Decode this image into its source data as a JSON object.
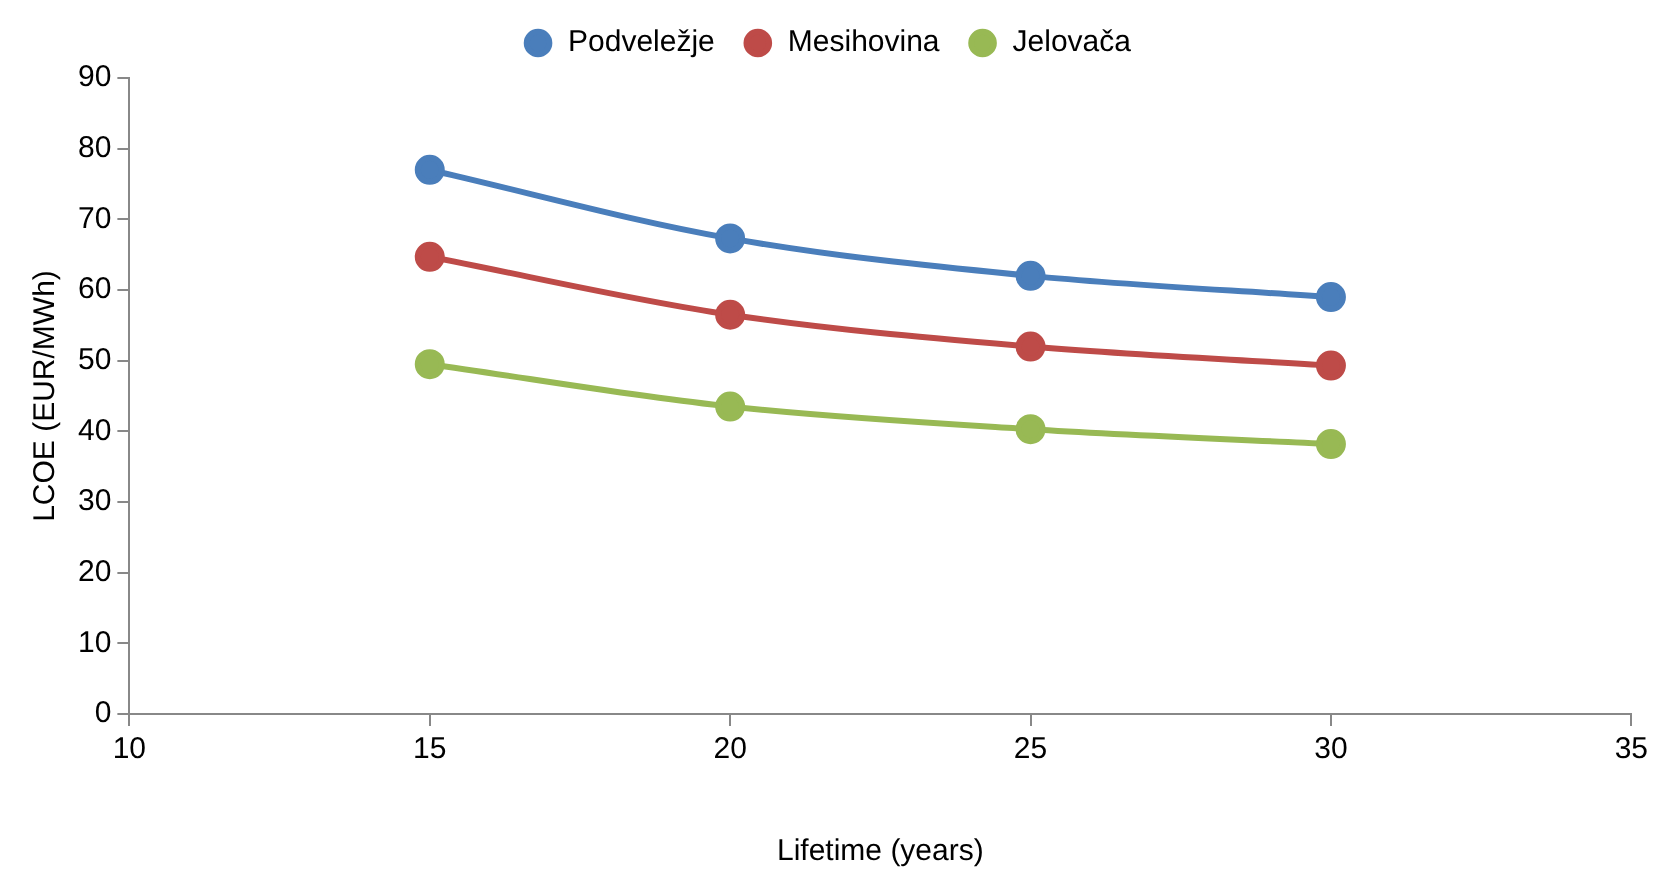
{
  "chart_data": {
    "type": "line",
    "xlabel": "Lifetime (years)",
    "ylabel": "LCOE (EUR/MWh)",
    "x": [
      15,
      20,
      25,
      30
    ],
    "series": [
      {
        "name": "Podveležje",
        "color": "#4a7ebb",
        "values": [
          77,
          67.3,
          62,
          59
        ]
      },
      {
        "name": "Mesihovina",
        "color": "#be4b48",
        "values": [
          64.7,
          56.5,
          52,
          49.3
        ]
      },
      {
        "name": "Jelovača",
        "color": "#98b954",
        "values": [
          49.5,
          43.5,
          40.3,
          38.2
        ]
      }
    ],
    "xlim": [
      10,
      35
    ],
    "xticks": [
      10,
      15,
      20,
      25,
      30,
      35
    ],
    "ylim": [
      0,
      90
    ],
    "yticks": [
      0,
      10,
      20,
      30,
      40,
      50,
      60,
      70,
      80,
      90
    ],
    "grid": false,
    "legend": "top",
    "marker": "circle",
    "line_style": "solid"
  }
}
